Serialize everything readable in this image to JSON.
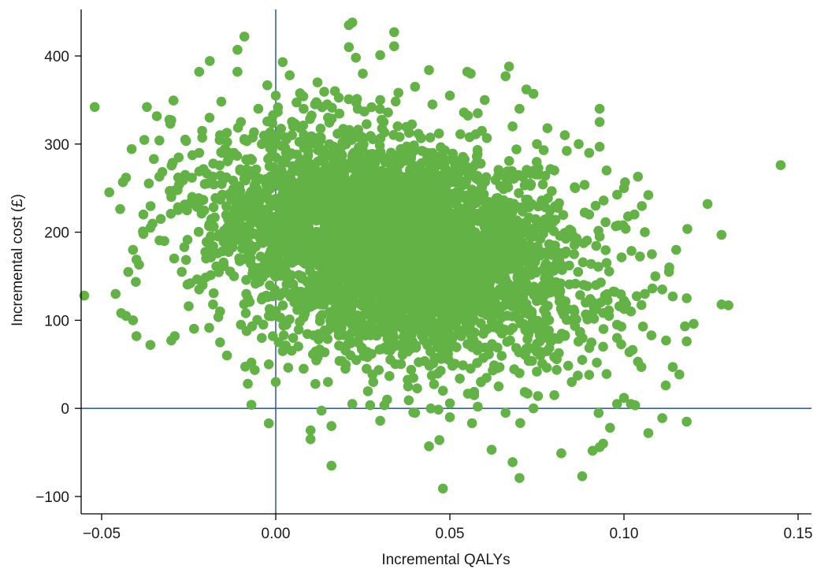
{
  "chart_data": {
    "type": "scatter",
    "title": "",
    "xlabel": "Incremental QALYs",
    "ylabel": "Incremental cost (£)",
    "xlim": [
      -0.06,
      0.155
    ],
    "ylim": [
      -120,
      450
    ],
    "x_ticks": [
      {
        "value": -0.05,
        "label": "−0.05"
      },
      {
        "value": 0.0,
        "label": "0.00"
      },
      {
        "value": 0.05,
        "label": "0.05"
      },
      {
        "value": 0.1,
        "label": "0.10"
      },
      {
        "value": 0.15,
        "label": "0.15"
      }
    ],
    "y_ticks": [
      {
        "value": -100,
        "label": "−100"
      },
      {
        "value": 0,
        "label": "0"
      },
      {
        "value": 100,
        "label": "100"
      },
      {
        "value": 200,
        "label": "200"
      },
      {
        "value": 300,
        "label": "300"
      },
      {
        "value": 400,
        "label": "400"
      }
    ],
    "reference_lines": [
      {
        "orientation": "vertical",
        "value": 0
      },
      {
        "orientation": "horizontal",
        "value": 0
      }
    ],
    "grid": false,
    "legend": "none",
    "colors": {
      "points": "#62b245",
      "reference": "#3a5fa8",
      "axes": "#000000"
    },
    "series": [
      {
        "points": [
          {
            "x": 0.036,
            "y": 180
          },
          {
            "x": -0.052,
            "y": 342
          },
          {
            "x": -0.037,
            "y": 342
          },
          {
            "x": -0.055,
            "y": 128
          },
          {
            "x": -0.046,
            "y": 130
          },
          {
            "x": -0.043,
            "y": 105
          },
          {
            "x": -0.041,
            "y": 100
          },
          {
            "x": -0.04,
            "y": 82
          },
          {
            "x": -0.036,
            "y": 72
          },
          {
            "x": -0.03,
            "y": 77
          },
          {
            "x": -0.029,
            "y": 82
          },
          {
            "x": -0.038,
            "y": 198
          },
          {
            "x": -0.038,
            "y": 220
          },
          {
            "x": -0.036,
            "y": 205
          },
          {
            "x": -0.041,
            "y": 180
          },
          {
            "x": -0.035,
            "y": 283
          },
          {
            "x": -0.03,
            "y": 327
          },
          {
            "x": -0.028,
            "y": 262
          },
          {
            "x": -0.026,
            "y": 305
          },
          {
            "x": -0.022,
            "y": 382
          },
          {
            "x": -0.019,
            "y": 330
          },
          {
            "x": -0.011,
            "y": 407
          },
          {
            "x": -0.009,
            "y": 422
          },
          {
            "x": -0.011,
            "y": 382
          },
          {
            "x": -0.016,
            "y": 75
          },
          {
            "x": -0.014,
            "y": 60
          },
          {
            "x": -0.008,
            "y": 28
          },
          {
            "x": -0.007,
            "y": 52
          },
          {
            "x": -0.007,
            "y": 4
          },
          {
            "x": -0.002,
            "y": 50
          },
          {
            "x": 0.0,
            "y": 30
          },
          {
            "x": -0.002,
            "y": -17
          },
          {
            "x": 0.002,
            "y": 393
          },
          {
            "x": 0.004,
            "y": 378
          },
          {
            "x": 0.021,
            "y": 435
          },
          {
            "x": 0.022,
            "y": 438
          },
          {
            "x": 0.021,
            "y": 410
          },
          {
            "x": 0.023,
            "y": 398
          },
          {
            "x": 0.034,
            "y": 427
          },
          {
            "x": 0.034,
            "y": 411
          },
          {
            "x": 0.03,
            "y": 401
          },
          {
            "x": 0.044,
            "y": 384
          },
          {
            "x": 0.055,
            "y": 382
          },
          {
            "x": 0.056,
            "y": 380
          },
          {
            "x": 0.067,
            "y": 388
          },
          {
            "x": 0.066,
            "y": 377
          },
          {
            "x": 0.074,
            "y": 357
          },
          {
            "x": 0.072,
            "y": 362
          },
          {
            "x": 0.087,
            "y": 300
          },
          {
            "x": 0.093,
            "y": 340
          },
          {
            "x": 0.093,
            "y": 325
          },
          {
            "x": 0.093,
            "y": 297
          },
          {
            "x": 0.104,
            "y": 263
          },
          {
            "x": 0.107,
            "y": 242
          },
          {
            "x": 0.145,
            "y": 276
          },
          {
            "x": 0.124,
            "y": 232
          },
          {
            "x": 0.128,
            "y": 197
          },
          {
            "x": 0.115,
            "y": 180
          },
          {
            "x": 0.113,
            "y": 160
          },
          {
            "x": 0.111,
            "y": 135
          },
          {
            "x": 0.114,
            "y": 127
          },
          {
            "x": 0.118,
            "y": 125
          },
          {
            "x": 0.12,
            "y": 96
          },
          {
            "x": 0.118,
            "y": 76
          },
          {
            "x": 0.114,
            "y": 47
          },
          {
            "x": 0.112,
            "y": 26
          },
          {
            "x": 0.128,
            "y": 118
          },
          {
            "x": 0.13,
            "y": 117
          },
          {
            "x": 0.118,
            "y": -15
          },
          {
            "x": 0.111,
            "y": -11
          },
          {
            "x": 0.107,
            "y": -28
          },
          {
            "x": 0.096,
            "y": -22
          },
          {
            "x": 0.094,
            "y": -40
          },
          {
            "x": 0.093,
            "y": -44
          },
          {
            "x": 0.091,
            "y": -48
          },
          {
            "x": 0.088,
            "y": -77
          },
          {
            "x": 0.082,
            "y": -51
          },
          {
            "x": 0.07,
            "y": -79
          },
          {
            "x": 0.068,
            "y": -61
          },
          {
            "x": 0.062,
            "y": -47
          },
          {
            "x": 0.048,
            "y": -91
          },
          {
            "x": 0.047,
            "y": -36
          },
          {
            "x": 0.044,
            "y": -43
          },
          {
            "x": 0.016,
            "y": -65
          },
          {
            "x": 0.01,
            "y": -25
          },
          {
            "x": 0.01,
            "y": -35
          },
          {
            "x": 0.016,
            "y": -20
          },
          {
            "x": 0.03,
            "y": -14
          },
          {
            "x": 0.102,
            "y": 5
          },
          {
            "x": 0.1,
            "y": 12
          },
          {
            "x": 0.098,
            "y": 5
          },
          {
            "x": 0.104,
            "y": 53
          },
          {
            "x": 0.105,
            "y": 47
          },
          {
            "x": 0.09,
            "y": 38
          },
          {
            "x": 0.095,
            "y": 39
          },
          {
            "x": 0.098,
            "y": 80
          },
          {
            "x": -0.028,
            "y": 225
          },
          {
            "x": -0.024,
            "y": 240
          },
          {
            "x": -0.02,
            "y": 170
          },
          {
            "x": -0.021,
            "y": 140
          },
          {
            "x": -0.018,
            "y": 118
          },
          {
            "x": -0.025,
            "y": 116
          },
          {
            "x": -0.015,
            "y": 260
          },
          {
            "x": -0.012,
            "y": 290
          },
          {
            "x": -0.005,
            "y": 340
          },
          {
            "x": 0.0,
            "y": 355
          },
          {
            "x": 0.008,
            "y": 340
          },
          {
            "x": 0.012,
            "y": 370
          },
          {
            "x": 0.017,
            "y": 360
          },
          {
            "x": 0.025,
            "y": 380
          },
          {
            "x": 0.04,
            "y": 365
          },
          {
            "x": 0.05,
            "y": 355
          },
          {
            "x": 0.06,
            "y": 350
          },
          {
            "x": 0.07,
            "y": 340
          },
          {
            "x": 0.078,
            "y": 318
          },
          {
            "x": 0.083,
            "y": 310
          },
          {
            "x": 0.09,
            "y": 290
          },
          {
            "x": 0.095,
            "y": 270
          },
          {
            "x": 0.1,
            "y": 250
          },
          {
            "x": 0.103,
            "y": 220
          },
          {
            "x": 0.106,
            "y": 200
          },
          {
            "x": 0.108,
            "y": 175
          },
          {
            "x": 0.109,
            "y": 150
          },
          {
            "x": 0.106,
            "y": 130
          },
          {
            "x": 0.102,
            "y": 110
          },
          {
            "x": 0.098,
            "y": 95
          },
          {
            "x": 0.094,
            "y": 70
          },
          {
            "x": 0.088,
            "y": 55
          },
          {
            "x": 0.085,
            "y": 30
          },
          {
            "x": 0.08,
            "y": 15
          },
          {
            "x": 0.074,
            "y": 0
          },
          {
            "x": 0.066,
            "y": -5
          },
          {
            "x": 0.058,
            "y": 2
          },
          {
            "x": 0.05,
            "y": -10
          },
          {
            "x": 0.04,
            "y": -5
          },
          {
            "x": 0.032,
            "y": 10
          },
          {
            "x": 0.022,
            "y": 5
          },
          {
            "x": 0.015,
            "y": 30
          },
          {
            "x": 0.008,
            "y": 45
          },
          {
            "x": 0.002,
            "y": 65
          },
          {
            "x": -0.004,
            "y": 80
          },
          {
            "x": -0.01,
            "y": 95
          },
          {
            "x": -0.016,
            "y": 110
          },
          {
            "x": -0.022,
            "y": 135
          },
          {
            "x": -0.027,
            "y": 155
          },
          {
            "x": -0.032,
            "y": 190
          },
          {
            "x": -0.033,
            "y": 215
          },
          {
            "x": -0.03,
            "y": 240
          },
          {
            "x": -0.026,
            "y": 265
          },
          {
            "x": -0.022,
            "y": 290
          },
          {
            "x": -0.016,
            "y": 310
          },
          {
            "x": -0.01,
            "y": 325
          },
          {
            "x": -0.004,
            "y": 300
          },
          {
            "x": 0.005,
            "y": 320
          },
          {
            "x": 0.01,
            "y": 300
          },
          {
            "x": 0.075,
            "y": 300
          },
          {
            "x": 0.08,
            "y": 270
          },
          {
            "x": 0.086,
            "y": 250
          },
          {
            "x": 0.09,
            "y": 220
          },
          {
            "x": 0.093,
            "y": 195
          },
          {
            "x": 0.095,
            "y": 165
          },
          {
            "x": 0.092,
            "y": 140
          },
          {
            "x": 0.089,
            "y": 120
          },
          {
            "x": 0.085,
            "y": 100
          },
          {
            "x": 0.08,
            "y": 80
          },
          {
            "x": 0.076,
            "y": 60
          },
          {
            "x": 0.07,
            "y": 40
          },
          {
            "x": 0.064,
            "y": 25
          },
          {
            "x": 0.057,
            "y": 15
          },
          {
            "x": 0.048,
            "y": 20
          },
          {
            "x": 0.038,
            "y": 25
          },
          {
            "x": 0.028,
            "y": 30
          },
          {
            "x": 0.02,
            "y": 45
          },
          {
            "x": 0.012,
            "y": 60
          },
          {
            "x": 0.005,
            "y": 80
          },
          {
            "x": -0.002,
            "y": 105
          },
          {
            "x": -0.008,
            "y": 125
          },
          {
            "x": -0.012,
            "y": 150
          },
          {
            "x": -0.014,
            "y": 180
          },
          {
            "x": -0.013,
            "y": 210
          },
          {
            "x": -0.01,
            "y": 240
          },
          {
            "x": -0.006,
            "y": 265
          },
          {
            "x": 0.0,
            "y": 285
          },
          {
            "x": 0.015,
            "y": 330
          },
          {
            "x": 0.03,
            "y": 350
          },
          {
            "x": 0.045,
            "y": 345
          },
          {
            "x": 0.058,
            "y": 335
          },
          {
            "x": 0.068,
            "y": 320
          }
        ]
      }
    ],
    "density_cloud": {
      "count": 4200,
      "seed": 20240511,
      "center": [
        0.034,
        185
      ],
      "sd": [
        0.025,
        62
      ],
      "correlation": -0.33
    }
  }
}
